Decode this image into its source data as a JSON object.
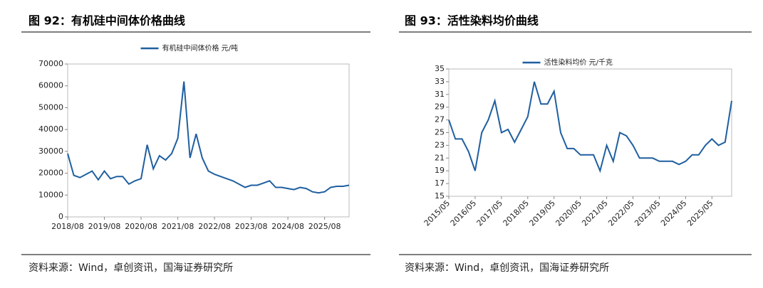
{
  "chart_data": [
    {
      "type": "line",
      "title": "图 92：有机硅中间体价格曲线",
      "source": "资料来源：Wind，卓创资讯，国海证券研究所",
      "categories": [
        "2018/08",
        null,
        null,
        null,
        null,
        null,
        "2019/08",
        null,
        null,
        null,
        null,
        null,
        "2020/08",
        null,
        null,
        null,
        null,
        null,
        "2021/08",
        null,
        null,
        null,
        null,
        null,
        "2022/08",
        null,
        null,
        null,
        null,
        null,
        "2023/08",
        null,
        null,
        null,
        null,
        null,
        "2024/08",
        null,
        null,
        null,
        null,
        null,
        "2025/08",
        null,
        null,
        null,
        null
      ],
      "series": [
        {
          "name": "有机硅中间体价格 元/吨",
          "color": "#1f5fa0",
          "values": [
            29000,
            19000,
            18000,
            19500,
            21000,
            17000,
            21000,
            17500,
            18500,
            18500,
            15000,
            16500,
            17500,
            33000,
            22000,
            28000,
            26000,
            29000,
            36000,
            62000,
            27000,
            38000,
            27000,
            21000,
            19500,
            18500,
            17500,
            16500,
            15000,
            13500,
            14500,
            14500,
            15500,
            16500,
            13500,
            13500,
            13000,
            12500,
            13500,
            13000,
            11500,
            11000,
            11500,
            13500,
            14000,
            14000,
            14500
          ]
        }
      ],
      "ylim": [
        0,
        70000
      ],
      "yticks": [
        0,
        10000,
        20000,
        30000,
        40000,
        50000,
        60000,
        70000
      ],
      "legend": "top"
    },
    {
      "type": "line",
      "title": "图 93：活性染料均价曲线",
      "source": "资料来源：Wind，卓创资讯，国海证券研究所",
      "categories": [
        "2015/05",
        null,
        null,
        null,
        "2016/05",
        null,
        null,
        null,
        "2017/05",
        null,
        null,
        null,
        "2018/05",
        null,
        null,
        null,
        "2019/05",
        null,
        null,
        null,
        "2020/05",
        null,
        null,
        null,
        "2021/05",
        null,
        null,
        null,
        "2022/05",
        null,
        null,
        null,
        "2023/05",
        null,
        null,
        null,
        "2024/05",
        null,
        null,
        null,
        "2025/05",
        null,
        null,
        null
      ],
      "series": [
        {
          "name": "活性染料均价 元/千克",
          "color": "#1f5fa0",
          "values": [
            27,
            24,
            24,
            22,
            19,
            25,
            27,
            30,
            25,
            25.5,
            23.5,
            25.5,
            27.5,
            33,
            29.5,
            29.5,
            31.5,
            25,
            22.5,
            22.5,
            21.5,
            21.5,
            21.5,
            19,
            23,
            20.5,
            25,
            24.5,
            23,
            21,
            21,
            21,
            20.5,
            20.5,
            20.5,
            20,
            20.5,
            21.5,
            21.5,
            23,
            24,
            23,
            23.5,
            30
          ]
        }
      ],
      "ylim": [
        15,
        35
      ],
      "yticks": [
        15,
        17,
        19,
        21,
        23,
        25,
        27,
        29,
        31,
        33,
        35
      ],
      "legend": "top"
    }
  ]
}
